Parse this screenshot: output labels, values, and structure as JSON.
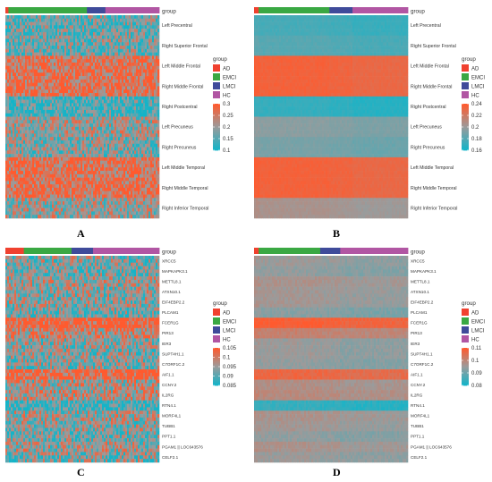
{
  "panel_labels": {
    "A": "A",
    "B": "B",
    "C": "C",
    "D": "D"
  },
  "group_colors": {
    "AD": "#f0412f",
    "EMCI": "#3aa843",
    "LMCI": "#3f4b9a",
    "HC": "#b156a3"
  },
  "chart_data": [
    {
      "type": "heatmap",
      "panel": "A",
      "annotation_title": "group",
      "groups": [
        "AD",
        "EMCI",
        "LMCI",
        "HC"
      ],
      "group_fractions": [
        0.02,
        0.51,
        0.12,
        0.35
      ],
      "rows": [
        "Left Precentral",
        "Right Superior Frontal",
        "Left Middle Frontal",
        "Right Middle Frontal",
        "Right Postcentral",
        "Left Precuneus",
        "Right Precuneus",
        "Left Middle Temporal",
        "Right Middle Temporal",
        "Right Inferior Temporal"
      ],
      "row_means": [
        0.16,
        0.17,
        0.27,
        0.27,
        0.14,
        0.2,
        0.18,
        0.27,
        0.27,
        0.2
      ],
      "legend_title": "group",
      "colorbar_ticks": [
        "0.3",
        "0.25",
        "0.2",
        "0.15",
        "0.1"
      ],
      "colorbar_range": [
        0.1,
        0.3
      ],
      "colors": [
        "#14b4c8",
        "#9b9b9b",
        "#ff5a2e"
      ]
    },
    {
      "type": "heatmap",
      "panel": "B",
      "annotation_title": "group",
      "groups": [
        "AD",
        "EMCI",
        "LMCI",
        "HC"
      ],
      "group_fractions": [
        0.03,
        0.46,
        0.15,
        0.36
      ],
      "rows": [
        "Left Precentral",
        "Right Superior Frontal",
        "Left Middle Frontal",
        "Right Middle Frontal",
        "Right Postcentral",
        "Left Precuneus",
        "Right Precuneus",
        "Left Middle Temporal",
        "Right Middle Temporal",
        "Right Inferior Temporal"
      ],
      "row_means": [
        0.175,
        0.18,
        0.235,
        0.235,
        0.17,
        0.195,
        0.19,
        0.235,
        0.235,
        0.205
      ],
      "legend_title": "group",
      "colorbar_ticks": [
        "0.24",
        "0.22",
        "0.2",
        "0.18",
        "0.16"
      ],
      "colorbar_range": [
        0.16,
        0.24
      ],
      "colors": [
        "#14b4c8",
        "#9b9b9b",
        "#ff5a2e"
      ]
    },
    {
      "type": "heatmap",
      "panel": "C",
      "annotation_title": "group",
      "groups": [
        "AD",
        "EMCI",
        "LMCI",
        "HC"
      ],
      "group_fractions": [
        0.12,
        0.31,
        0.14,
        0.43
      ],
      "rows": [
        "XRCC5",
        "MAPKAPK3.1",
        "METTL8.1",
        "ATXN10.1",
        "EIF4EBP2.2",
        "PLCAM1",
        "FCER1G",
        "PIR13",
        "IER3",
        "SUPT4H1.1",
        "C7ORF1C.2",
        "AIF1.1",
        "CCNY.2",
        "IL2RG",
        "RTN4.1",
        "MORF4L1",
        "TUBB1",
        "PPT1.1",
        "PGAM1 || LOC643576",
        "CELF2.1"
      ],
      "row_means": [
        0.093,
        0.092,
        0.095,
        0.094,
        0.094,
        0.092,
        0.105,
        0.099,
        0.094,
        0.093,
        0.093,
        0.104,
        0.096,
        0.097,
        0.088,
        0.095,
        0.094,
        0.092,
        0.095,
        0.093
      ],
      "legend_title": "group",
      "colorbar_ticks": [
        "0.105",
        "0.1",
        "0.095",
        "0.09",
        "0.085"
      ],
      "colorbar_range": [
        0.085,
        0.105
      ],
      "colors": [
        "#14b4c8",
        "#9b9b9b",
        "#ff5a2e"
      ]
    },
    {
      "type": "heatmap",
      "panel": "D",
      "annotation_title": "group",
      "groups": [
        "AD",
        "EMCI",
        "LMCI",
        "HC"
      ],
      "group_fractions": [
        0.03,
        0.4,
        0.13,
        0.44
      ],
      "rows": [
        "XRCC5",
        "MAPKAPK3.1",
        "METTL8.1",
        "ATXN10.1",
        "EIF4EBP2.2",
        "PLCAM1",
        "FCER1G",
        "PIR13",
        "IER3",
        "SUPT4H1.1",
        "C7ORF1C.2",
        "AIF1.1",
        "CCNY.2",
        "IL2RG",
        "RTN4.1",
        "MORF4L1",
        "TUBB1",
        "PPT1.1",
        "PGAM1 || LOC643576",
        "CELF2.1"
      ],
      "row_means": [
        0.095,
        0.094,
        0.097,
        0.096,
        0.096,
        0.093,
        0.109,
        0.101,
        0.095,
        0.095,
        0.094,
        0.107,
        0.098,
        0.099,
        0.084,
        0.097,
        0.096,
        0.094,
        0.097,
        0.095
      ],
      "legend_title": "group",
      "colorbar_ticks": [
        "0.11",
        "0.1",
        "0.09",
        "0.08"
      ],
      "colorbar_range": [
        0.08,
        0.11
      ],
      "colors": [
        "#14b4c8",
        "#9b9b9b",
        "#ff5a2e"
      ]
    }
  ]
}
